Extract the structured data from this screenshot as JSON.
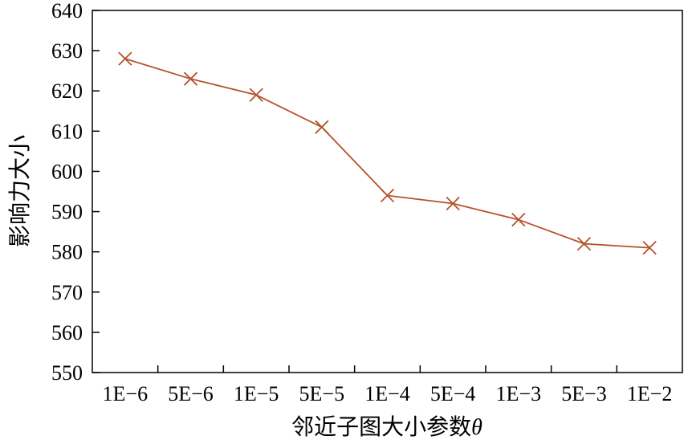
{
  "chart_data": {
    "type": "line",
    "title": "",
    "xlabel": "邻近子图大小参数",
    "xlabel_symbol": "θ",
    "ylabel": "影响力大小",
    "x_tick_labels": [
      "1E−6",
      "5E−6",
      "1E−5",
      "5E−5",
      "1E−4",
      "5E−4",
      "1E−3",
      "5E−3",
      "1E−2"
    ],
    "ylim": [
      550,
      640
    ],
    "y_ticks": [
      550,
      560,
      570,
      580,
      590,
      600,
      610,
      620,
      630,
      640
    ],
    "grid": false,
    "series": [
      {
        "marker": "x",
        "color": "#b5532b",
        "x": [
          "1E−6",
          "5E−6",
          "1E−5",
          "5E−5",
          "1E−4",
          "5E−4",
          "1E−3",
          "5E−3",
          "1E−2"
        ],
        "values": [
          628,
          623,
          619,
          611,
          594,
          592,
          588,
          582,
          581
        ]
      }
    ]
  }
}
